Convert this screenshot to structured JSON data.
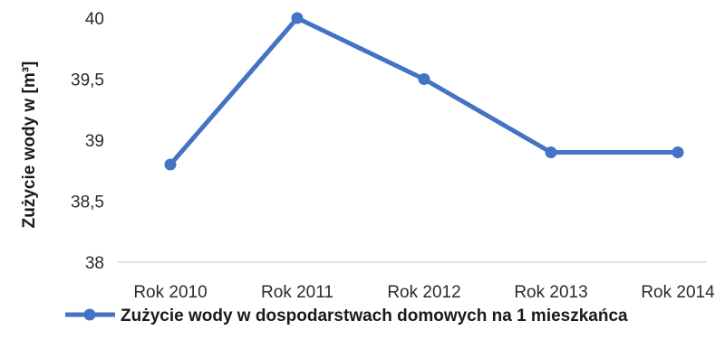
{
  "chart_data": {
    "type": "line",
    "categories": [
      "Rok 2010",
      "Rok 2011",
      "Rok 2012",
      "Rok 2013",
      "Rok 2014"
    ],
    "series": [
      {
        "name": "Zużycie wody w dospodarstwach domowych na 1 mieszkańca",
        "values": [
          38.8,
          40.0,
          39.5,
          38.9,
          38.9
        ],
        "color": "#4472c4"
      }
    ],
    "ylabel": "Zużycie wody w [m³]",
    "ylim": [
      38,
      40
    ],
    "yticks": [
      "38",
      "38,5",
      "39",
      "39,5",
      "40"
    ],
    "grid": false,
    "legend": "bottom"
  }
}
